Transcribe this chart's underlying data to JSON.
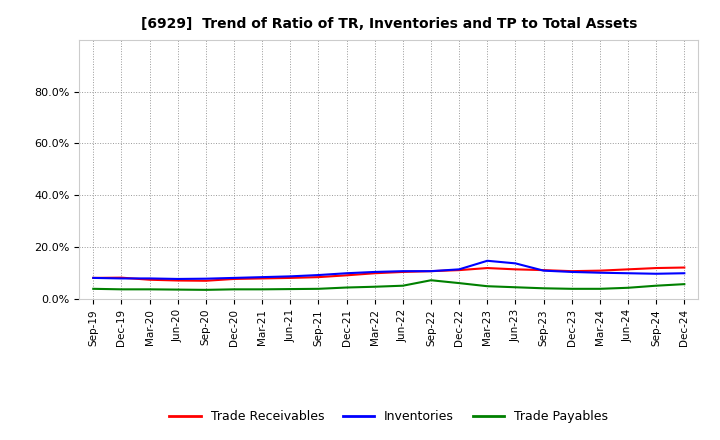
{
  "title": "[6929]  Trend of Ratio of TR, Inventories and TP to Total Assets",
  "xlabels": [
    "Sep-19",
    "Dec-19",
    "Mar-20",
    "Jun-20",
    "Sep-20",
    "Dec-20",
    "Mar-21",
    "Jun-21",
    "Sep-21",
    "Dec-21",
    "Mar-22",
    "Jun-22",
    "Sep-22",
    "Dec-22",
    "Mar-23",
    "Jun-23",
    "Sep-23",
    "Dec-23",
    "Mar-24",
    "Jun-24",
    "Sep-24",
    "Dec-24"
  ],
  "trade_receivables": [
    0.082,
    0.083,
    0.075,
    0.072,
    0.071,
    0.078,
    0.08,
    0.082,
    0.085,
    0.092,
    0.1,
    0.105,
    0.108,
    0.112,
    0.12,
    0.115,
    0.112,
    0.108,
    0.11,
    0.115,
    0.12,
    0.122
  ],
  "inventories": [
    0.082,
    0.08,
    0.08,
    0.078,
    0.079,
    0.082,
    0.085,
    0.088,
    0.093,
    0.1,
    0.105,
    0.108,
    0.108,
    0.115,
    0.148,
    0.138,
    0.11,
    0.105,
    0.102,
    0.1,
    0.098,
    0.1
  ],
  "trade_payables": [
    0.04,
    0.038,
    0.038,
    0.037,
    0.036,
    0.038,
    0.038,
    0.039,
    0.04,
    0.045,
    0.048,
    0.052,
    0.073,
    0.062,
    0.05,
    0.046,
    0.042,
    0.04,
    0.04,
    0.044,
    0.052,
    0.058
  ],
  "tr_color": "#ff0000",
  "inv_color": "#0000ff",
  "tp_color": "#008000",
  "background_color": "#ffffff",
  "grid_color": "#999999",
  "line_width": 1.5,
  "legend_labels": [
    "Trade Receivables",
    "Inventories",
    "Trade Payables"
  ]
}
